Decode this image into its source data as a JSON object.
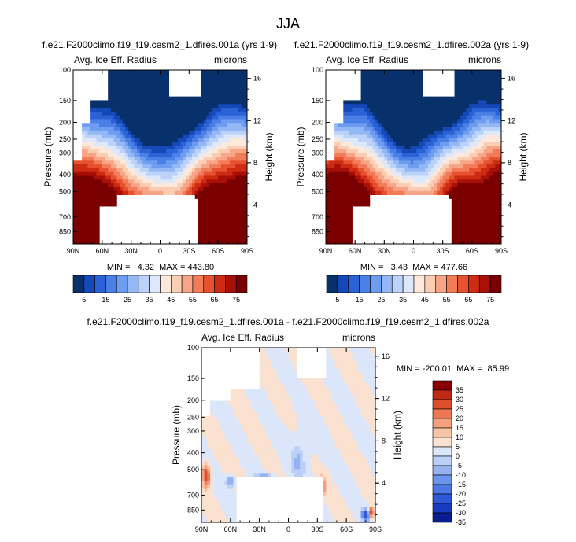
{
  "title": "JJA",
  "palettes": {
    "main": [
      "#08306b",
      "#1549b8",
      "#2b63d6",
      "#4a7fe6",
      "#6d9cf0",
      "#94b8f5",
      "#bcd2f8",
      "#dde8fa",
      "#fde9dc",
      "#fbcdb3",
      "#f7a586",
      "#f27b59",
      "#e6512f",
      "#cd2b12",
      "#a80f06",
      "#7a0000"
    ],
    "diff": [
      "#0a1f8f",
      "#1a3bc0",
      "#2f58d9",
      "#4c77e6",
      "#6e95ee",
      "#95b3f3",
      "#bcd0f7",
      "#dbe6fa",
      "#fbe1cf",
      "#f9c3a6",
      "#f59f7c",
      "#ee7753",
      "#de4e2e",
      "#c02a13",
      "#8b0000"
    ]
  },
  "panels": [
    {
      "key": "left",
      "title": "f.e21.F2000climo.f19_f19.cesm2_1.dfires.001a (yrs 1-9)",
      "variable": "Avg. Ice Eff. Radius",
      "units": "microns",
      "stats": "MIN =   4.32  MAX = 443.80"
    },
    {
      "key": "right",
      "title": "f.e21.F2000climo.f19_f19.cesm2_1.dfires.002a (yrs 1-9)",
      "variable": "Avg. Ice Eff. Radius",
      "units": "microns",
      "stats": "MIN =   3.43  MAX = 477.66"
    },
    {
      "key": "diff",
      "title": "f.e21.F2000climo.f19_f19.cesm2_1.dfires.001a - f.e21.F2000climo.f19_f19.cesm2_1.dfires.002a",
      "variable": "Avg. Ice Eff. Radius",
      "units": "microns",
      "stats": "MIN = -200.01  MAX =  85.99"
    }
  ],
  "chart_data": [
    {
      "type": "heatmap",
      "title": "f.e21.F2000climo.f19_f19.cesm2_1.dfires.001a (yrs 1-9)",
      "variable": "Avg. Ice Eff. Radius",
      "units": "microns",
      "ylabel": "Pressure (mb)",
      "y2label": "Height (km)",
      "x_ticks": [
        "90N",
        "60N",
        "30N",
        "0",
        "30S",
        "60S",
        "90S"
      ],
      "y_ticks": [
        "100",
        "150",
        "200",
        "250",
        "300",
        "400",
        "500",
        "700",
        "850"
      ],
      "y2_ticks": [
        "16",
        "12",
        "8",
        "4"
      ],
      "lat_range": [
        90,
        -90
      ],
      "pressure_range": [
        100,
        1000
      ],
      "colorbar_labels": [
        "5",
        "15",
        "25",
        "35",
        "45",
        "55",
        "65",
        "75"
      ],
      "contour_levels": [
        0,
        5,
        10,
        15,
        20,
        25,
        30,
        35,
        40,
        45,
        50,
        55,
        60,
        65,
        70,
        75,
        80
      ],
      "min": 4.32,
      "max": 443.8
    },
    {
      "type": "heatmap",
      "title": "f.e21.F2000climo.f19_f19.cesm2_1.dfires.002a (yrs 1-9)",
      "variable": "Avg. Ice Eff. Radius",
      "units": "microns",
      "ylabel": "Pressure (mb)",
      "y2label": "Height (km)",
      "x_ticks": [
        "90N",
        "60N",
        "30N",
        "0",
        "30S",
        "60S",
        "90S"
      ],
      "y_ticks": [
        "100",
        "150",
        "200",
        "250",
        "300",
        "400",
        "500",
        "700",
        "850"
      ],
      "y2_ticks": [
        "16",
        "12",
        "8",
        "4"
      ],
      "lat_range": [
        90,
        -90
      ],
      "pressure_range": [
        100,
        1000
      ],
      "colorbar_labels": [
        "5",
        "15",
        "25",
        "35",
        "45",
        "55",
        "65",
        "75"
      ],
      "contour_levels": [
        0,
        5,
        10,
        15,
        20,
        25,
        30,
        35,
        40,
        45,
        50,
        55,
        60,
        65,
        70,
        75,
        80
      ],
      "min": 3.43,
      "max": 477.66
    },
    {
      "type": "heatmap",
      "title": "f.e21.F2000climo.f19_f19.cesm2_1.dfires.001a - f.e21.F2000climo.f19_f19.cesm2_1.dfires.002a",
      "variable": "Avg. Ice Eff. Radius",
      "units": "microns",
      "ylabel": "Pressure (mb)",
      "y2label": "Height (km)",
      "x_ticks": [
        "90N",
        "60N",
        "30N",
        "0",
        "30S",
        "60S",
        "90S"
      ],
      "y_ticks": [
        "100",
        "150",
        "200",
        "250",
        "300",
        "400",
        "500",
        "700",
        "850"
      ],
      "y2_ticks": [
        "16",
        "12",
        "8",
        "4"
      ],
      "lat_range": [
        90,
        -90
      ],
      "pressure_range": [
        100,
        1000
      ],
      "colorbar_labels": [
        "35",
        "30",
        "25",
        "20",
        "15",
        "10",
        "5",
        "0",
        "-5",
        "-10",
        "-15",
        "-20",
        "-25",
        "-30",
        "-35"
      ],
      "contour_levels": [
        -40,
        -35,
        -30,
        -25,
        -20,
        -15,
        -10,
        -5,
        0,
        5,
        10,
        15,
        20,
        25,
        30,
        35,
        40
      ],
      "min": -200.01,
      "max": 85.99
    }
  ]
}
